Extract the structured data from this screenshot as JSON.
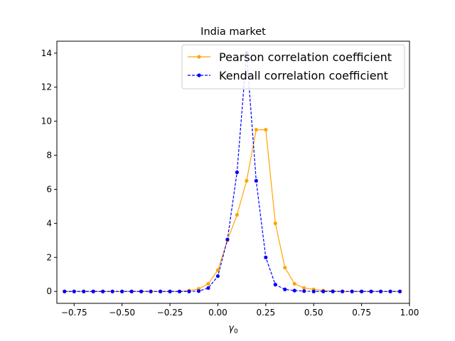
{
  "chart_data": {
    "type": "line",
    "title": "India market",
    "xlabel": "γ",
    "xlabel_subscript": "0",
    "ylabel": "",
    "xlim": [
      -0.84,
      1.0
    ],
    "ylim": [
      -0.7,
      14.7
    ],
    "xticks": [
      -0.75,
      -0.5,
      -0.25,
      0.0,
      0.25,
      0.5,
      0.75,
      1.0
    ],
    "xtick_labels": [
      "−0.75",
      "−0.50",
      "−0.25",
      "0.00",
      "0.25",
      "0.50",
      "0.75",
      "1.00"
    ],
    "yticks": [
      0,
      2,
      4,
      6,
      8,
      10,
      12,
      14
    ],
    "ytick_labels": [
      "0",
      "2",
      "4",
      "6",
      "8",
      "10",
      "12",
      "14"
    ],
    "grid": false,
    "legend_position": "upper-right",
    "x": [
      -0.8,
      -0.75,
      -0.7,
      -0.65,
      -0.6,
      -0.55,
      -0.5,
      -0.45,
      -0.4,
      -0.35,
      -0.3,
      -0.25,
      -0.2,
      -0.15,
      -0.1,
      -0.05,
      0.0,
      0.05,
      0.1,
      0.15,
      0.2,
      0.25,
      0.3,
      0.35,
      0.4,
      0.45,
      0.5,
      0.55,
      0.6,
      0.65,
      0.7,
      0.75,
      0.8,
      0.85,
      0.9,
      0.95
    ],
    "series": [
      {
        "name": "Pearson correlation coefficient",
        "color": "#ffa500",
        "linestyle": "solid",
        "values": [
          0,
          0,
          0,
          0,
          0,
          0,
          0,
          0,
          0,
          0,
          0,
          0,
          0,
          0.05,
          0.15,
          0.45,
          1.25,
          3.0,
          4.5,
          6.5,
          9.5,
          9.5,
          4.0,
          1.4,
          0.45,
          0.2,
          0.12,
          0.05,
          0.02,
          0,
          0,
          0,
          0,
          0,
          0,
          0
        ]
      },
      {
        "name": "Kendall correlation coefficient",
        "color": "#0000ff",
        "linestyle": "dashed",
        "values": [
          0,
          0,
          0,
          0,
          0,
          0,
          0,
          0,
          0,
          0,
          0,
          0,
          0,
          0,
          0.02,
          0.2,
          0.9,
          3.05,
          7.0,
          14.0,
          6.5,
          2.0,
          0.4,
          0.12,
          0.05,
          0.02,
          0,
          0,
          0,
          0,
          0,
          0,
          0,
          0,
          0,
          0
        ]
      }
    ]
  }
}
